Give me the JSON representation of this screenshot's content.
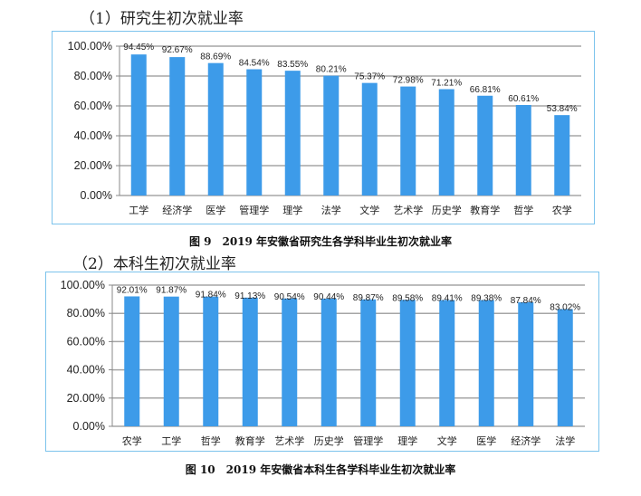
{
  "sections": [
    {
      "heading": "（1）研究生初次就业率"
    },
    {
      "heading": "（2）本科生初次就业率"
    }
  ],
  "chart_data": [
    {
      "type": "bar",
      "title": "",
      "caption": "图 9　2019 年安徽省研究生各学科毕业生初次就业率",
      "categories": [
        "工学",
        "经济学",
        "医学",
        "管理学",
        "理学",
        "法学",
        "文学",
        "艺术学",
        "历史学",
        "教育学",
        "哲学",
        "农学"
      ],
      "values": [
        94.45,
        92.67,
        88.69,
        84.54,
        83.55,
        80.21,
        75.37,
        72.98,
        71.21,
        66.81,
        60.61,
        53.84
      ],
      "data_labels": [
        "94.45%",
        "92.67%",
        "88.69%",
        "84.54%",
        "83.55%",
        "80.21%",
        "75.37%",
        "72.98%",
        "71.21%",
        "66.81%",
        "60.61%",
        "53.84%"
      ],
      "yticks": [
        "0.00%",
        "20.00%",
        "40.00%",
        "60.00%",
        "80.00%",
        "100.00%"
      ],
      "ylim": [
        0,
        100
      ],
      "grid": true,
      "color": "#3d9be9"
    },
    {
      "type": "bar",
      "title": "",
      "caption": "图 10　2019 年安徽省本科生各学科毕业生初次就业率",
      "categories": [
        "农学",
        "工学",
        "哲学",
        "教育学",
        "艺术学",
        "历史学",
        "管理学",
        "理学",
        "文学",
        "医学",
        "经济学",
        "法学"
      ],
      "values": [
        92.01,
        91.87,
        91.84,
        91.13,
        90.54,
        90.44,
        89.87,
        89.58,
        89.41,
        89.38,
        87.84,
        83.02
      ],
      "data_labels": [
        "92.01%",
        "91.87%",
        "91.84%",
        "91.13%",
        "90.54%",
        "90.44%",
        "89.87%",
        "89.58%",
        "89.41%",
        "89.38%",
        "87.84%",
        "83.02%"
      ],
      "yticks": [
        "0.00%",
        "20.00%",
        "40.00%",
        "60.00%",
        "80.00%",
        "100.00%"
      ],
      "ylim": [
        0,
        100
      ],
      "grid": true,
      "color": "#3d9be9"
    }
  ]
}
